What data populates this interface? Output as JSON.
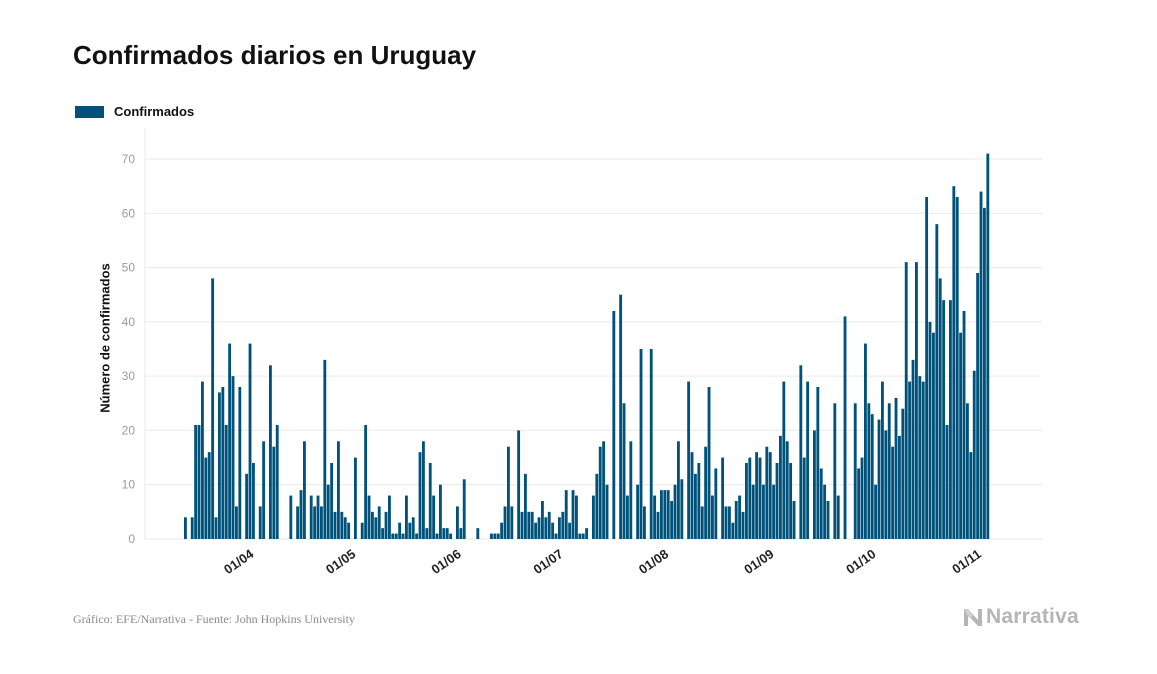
{
  "title": "Confirmados diarios en Uruguay",
  "footer": {
    "source": "Gráfico: EFE/Narrativa - Fuente: John Hopkins University",
    "brand": "Narrativa"
  },
  "colors": {
    "bar": "#00527a",
    "grid": "#e9e9e9",
    "tick": "#9b9b9b",
    "brand": "#b5b5b5"
  },
  "chart_data": {
    "type": "bar",
    "title": "Confirmados diarios en Uruguay",
    "ylabel": "Número de confirmados",
    "xlabel": "",
    "legend": "top-left",
    "grid": true,
    "ylim": [
      0,
      70
    ],
    "yticks": [
      0,
      10,
      20,
      30,
      40,
      50,
      60,
      70
    ],
    "x_start": "2020-03-13",
    "x_end": "2020-11-07",
    "x_ticks": [
      {
        "label": "01/04",
        "date": "2020-04-01"
      },
      {
        "label": "01/05",
        "date": "2020-05-01"
      },
      {
        "label": "01/06",
        "date": "2020-06-01"
      },
      {
        "label": "01/07",
        "date": "2020-07-01"
      },
      {
        "label": "01/08",
        "date": "2020-08-01"
      },
      {
        "label": "01/09",
        "date": "2020-09-01"
      },
      {
        "label": "01/10",
        "date": "2020-10-01"
      },
      {
        "label": "01/11",
        "date": "2020-11-01"
      }
    ],
    "series": [
      {
        "name": "Confirmados",
        "values": [
          4,
          0,
          4,
          21,
          21,
          29,
          15,
          16,
          48,
          4,
          27,
          28,
          21,
          36,
          30,
          6,
          28,
          0,
          12,
          36,
          14,
          0,
          6,
          18,
          0,
          32,
          17,
          21,
          0,
          0,
          0,
          8,
          0,
          6,
          9,
          18,
          0,
          8,
          6,
          8,
          6,
          33,
          10,
          14,
          5,
          18,
          5,
          4,
          3,
          0,
          15,
          0,
          3,
          21,
          8,
          5,
          4,
          6,
          2,
          5,
          8,
          1,
          1,
          3,
          1,
          8,
          3,
          4,
          1,
          16,
          18,
          2,
          14,
          8,
          1,
          10,
          2,
          2,
          1,
          0,
          6,
          2,
          11,
          0,
          0,
          0,
          2,
          0,
          0,
          0,
          1,
          1,
          1,
          3,
          6,
          17,
          6,
          0,
          20,
          5,
          12,
          5,
          5,
          3,
          4,
          7,
          4,
          5,
          3,
          1,
          4,
          5,
          9,
          3,
          9,
          8,
          1,
          1,
          2,
          0,
          8,
          12,
          17,
          18,
          10,
          0,
          42,
          0,
          45,
          25,
          8,
          18,
          0,
          10,
          35,
          6,
          0,
          35,
          8,
          5,
          9,
          9,
          9,
          7,
          10,
          18,
          11,
          0,
          29,
          16,
          12,
          14,
          6,
          17,
          28,
          8,
          13,
          0,
          15,
          6,
          6,
          3,
          7,
          8,
          5,
          14,
          15,
          10,
          16,
          15,
          10,
          17,
          16,
          10,
          14,
          19,
          29,
          18,
          14,
          7,
          0,
          32,
          15,
          29,
          0,
          20,
          28,
          13,
          10,
          7,
          0,
          25,
          8,
          0,
          41,
          0,
          0,
          25,
          13,
          15,
          36,
          25,
          23,
          10,
          22,
          29,
          20,
          25,
          17,
          26,
          19,
          24,
          51,
          29,
          33,
          51,
          30,
          29,
          63,
          40,
          38,
          58,
          48,
          44,
          21,
          44,
          65,
          63,
          38,
          42,
          25,
          16,
          31,
          49,
          64,
          61,
          71
        ]
      }
    ]
  }
}
